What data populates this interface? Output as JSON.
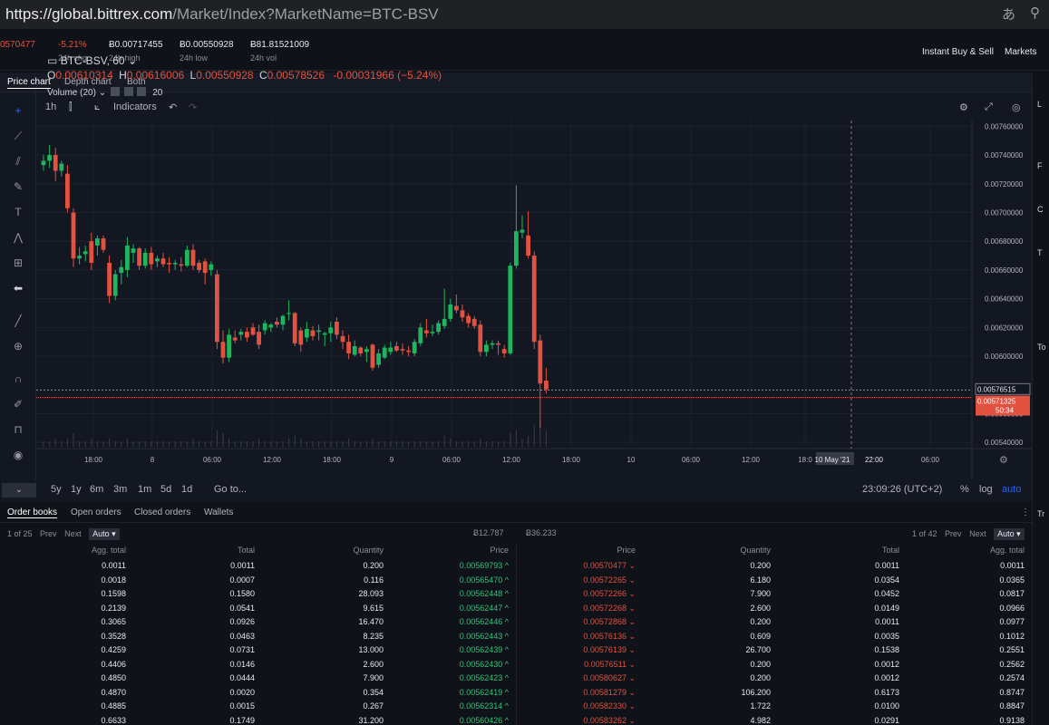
{
  "url": {
    "host": "https://global.bittrex.com",
    "path": "/Market/Index?MarketName=BTC-BSV"
  },
  "ticker": {
    "last": "0570477",
    "chg": "-5.21%",
    "chg_label": "24h chg",
    "high": "Ƀ0.00717455",
    "high_label": "24h high",
    "low": "Ƀ0.00550928",
    "low_label": "24h low",
    "vol": "Ƀ81.81521009",
    "vol_label": "24h vol",
    "instant_buy": "Instant Buy & Sell",
    "markets": "Markets"
  },
  "chart_tabs": [
    "Price chart",
    "Depth chart",
    "Both"
  ],
  "toolbar": {
    "interval": "1h",
    "indicators": "Indicators"
  },
  "legend": {
    "symbol": "BTC-BSV, 60",
    "o_label": "O",
    "o": "0.00610314",
    "h_label": "H",
    "h": "0.00616006",
    "l_label": "L",
    "l": "0.00550928",
    "c_label": "C",
    "c": "0.00578526",
    "change": "-0.00031966 (−5.24%)",
    "volume": "Volume (20)",
    "volume_val": "20"
  },
  "chart_data": {
    "type": "candlestick",
    "symbol": "BTC-BSV",
    "interval": "60",
    "y_ticks": [
      "0.00760000",
      "0.00740000",
      "0.00720000",
      "0.00700000",
      "0.00680000",
      "0.00660000",
      "0.00640000",
      "0.00620000",
      "0.00600000",
      "0.00560000",
      "0.00540000"
    ],
    "ylim": [
      0.00537,
      0.00764
    ],
    "x_ticks": [
      "18:00",
      "8",
      "06:00",
      "12:00",
      "18:00",
      "9",
      "06:00",
      "12:00",
      "18:00",
      "10",
      "06:00",
      "12:00",
      "18:0",
      "10 May '21",
      "22:00",
      "06:00"
    ],
    "price_labels": {
      "bid": "0.00576515",
      "last": "0.00571325",
      "countdown": "50:34"
    },
    "candles": [
      {
        "o": 0.00733,
        "h": 0.0074,
        "l": 0.00729,
        "c": 0.00736
      },
      {
        "o": 0.00736,
        "h": 0.00747,
        "l": 0.00731,
        "c": 0.0074
      },
      {
        "o": 0.0074,
        "h": 0.00745,
        "l": 0.00722,
        "c": 0.00729
      },
      {
        "o": 0.00729,
        "h": 0.00736,
        "l": 0.00725,
        "c": 0.00734
      },
      {
        "o": 0.00727,
        "h": 0.00733,
        "l": 0.007,
        "c": 0.00703
      },
      {
        "o": 0.007,
        "h": 0.00703,
        "l": 0.00662,
        "c": 0.00668
      },
      {
        "o": 0.00668,
        "h": 0.00676,
        "l": 0.00664,
        "c": 0.0067
      },
      {
        "o": 0.00671,
        "h": 0.00677,
        "l": 0.00666,
        "c": 0.00673
      },
      {
        "o": 0.0068,
        "h": 0.00686,
        "l": 0.0066,
        "c": 0.00665
      },
      {
        "o": 0.00677,
        "h": 0.00684,
        "l": 0.0067,
        "c": 0.00682
      },
      {
        "o": 0.00682,
        "h": 0.00684,
        "l": 0.00672,
        "c": 0.00674
      },
      {
        "o": 0.00665,
        "h": 0.0067,
        "l": 0.00637,
        "c": 0.00642
      },
      {
        "o": 0.00642,
        "h": 0.0066,
        "l": 0.00639,
        "c": 0.00657
      },
      {
        "o": 0.00658,
        "h": 0.00667,
        "l": 0.0065,
        "c": 0.00662
      },
      {
        "o": 0.0066,
        "h": 0.00683,
        "l": 0.00655,
        "c": 0.00677
      },
      {
        "o": 0.00672,
        "h": 0.00678,
        "l": 0.00665,
        "c": 0.00675
      },
      {
        "o": 0.00675,
        "h": 0.00676,
        "l": 0.0066,
        "c": 0.00663
      },
      {
        "o": 0.00663,
        "h": 0.00675,
        "l": 0.00661,
        "c": 0.00672
      },
      {
        "o": 0.00672,
        "h": 0.00676,
        "l": 0.0066,
        "c": 0.00664
      },
      {
        "o": 0.00666,
        "h": 0.0067,
        "l": 0.00662,
        "c": 0.00668
      },
      {
        "o": 0.00668,
        "h": 0.00672,
        "l": 0.00662,
        "c": 0.00664
      },
      {
        "o": 0.00665,
        "h": 0.00669,
        "l": 0.00658,
        "c": 0.00664
      },
      {
        "o": 0.00664,
        "h": 0.00667,
        "l": 0.0066,
        "c": 0.00665
      },
      {
        "o": 0.00664,
        "h": 0.00669,
        "l": 0.00659,
        "c": 0.00663
      },
      {
        "o": 0.00663,
        "h": 0.00677,
        "l": 0.00662,
        "c": 0.00674
      },
      {
        "o": 0.00674,
        "h": 0.00678,
        "l": 0.0066,
        "c": 0.00663
      },
      {
        "o": 0.00665,
        "h": 0.00667,
        "l": 0.00658,
        "c": 0.0066
      },
      {
        "o": 0.00666,
        "h": 0.00668,
        "l": 0.0065,
        "c": 0.00658
      },
      {
        "o": 0.0066,
        "h": 0.00666,
        "l": 0.00656,
        "c": 0.00664
      },
      {
        "o": 0.00657,
        "h": 0.0066,
        "l": 0.00605,
        "c": 0.0061
      },
      {
        "o": 0.0061,
        "h": 0.00618,
        "l": 0.00595,
        "c": 0.00599
      },
      {
        "o": 0.00599,
        "h": 0.00619,
        "l": 0.00596,
        "c": 0.00615
      },
      {
        "o": 0.00613,
        "h": 0.00618,
        "l": 0.00609,
        "c": 0.00611
      },
      {
        "o": 0.00615,
        "h": 0.00619,
        "l": 0.00611,
        "c": 0.00617
      },
      {
        "o": 0.00617,
        "h": 0.0062,
        "l": 0.0061,
        "c": 0.00613
      },
      {
        "o": 0.0062,
        "h": 0.00623,
        "l": 0.00614,
        "c": 0.00615
      },
      {
        "o": 0.00617,
        "h": 0.00622,
        "l": 0.00605,
        "c": 0.00608
      },
      {
        "o": 0.00618,
        "h": 0.00625,
        "l": 0.00615,
        "c": 0.00623
      },
      {
        "o": 0.0062,
        "h": 0.00623,
        "l": 0.00617,
        "c": 0.00622
      },
      {
        "o": 0.00624,
        "h": 0.00627,
        "l": 0.0062,
        "c": 0.00622
      },
      {
        "o": 0.00622,
        "h": 0.00629,
        "l": 0.00618,
        "c": 0.00628
      },
      {
        "o": 0.0063,
        "h": 0.00639,
        "l": 0.00625,
        "c": 0.0063
      },
      {
        "o": 0.0063,
        "h": 0.00631,
        "l": 0.00607,
        "c": 0.00609
      },
      {
        "o": 0.00618,
        "h": 0.0062,
        "l": 0.00603,
        "c": 0.00608
      },
      {
        "o": 0.00613,
        "h": 0.00624,
        "l": 0.0061,
        "c": 0.00619
      },
      {
        "o": 0.00618,
        "h": 0.00621,
        "l": 0.00611,
        "c": 0.00614
      },
      {
        "o": 0.00617,
        "h": 0.00622,
        "l": 0.00611,
        "c": 0.00618
      },
      {
        "o": 0.00615,
        "h": 0.00617,
        "l": 0.00607,
        "c": 0.00616
      },
      {
        "o": 0.00616,
        "h": 0.00624,
        "l": 0.0061,
        "c": 0.0062
      },
      {
        "o": 0.00624,
        "h": 0.00627,
        "l": 0.00612,
        "c": 0.00615
      },
      {
        "o": 0.00614,
        "h": 0.00618,
        "l": 0.00605,
        "c": 0.0061
      },
      {
        "o": 0.0061,
        "h": 0.00615,
        "l": 0.00598,
        "c": 0.00602
      },
      {
        "o": 0.00601,
        "h": 0.00611,
        "l": 0.006,
        "c": 0.00607
      },
      {
        "o": 0.00606,
        "h": 0.00607,
        "l": 0.006,
        "c": 0.00602
      },
      {
        "o": 0.00603,
        "h": 0.00607,
        "l": 0.00596,
        "c": 0.00605
      },
      {
        "o": 0.00608,
        "h": 0.00609,
        "l": 0.0059,
        "c": 0.00592
      },
      {
        "o": 0.00594,
        "h": 0.00605,
        "l": 0.00592,
        "c": 0.00602
      },
      {
        "o": 0.00599,
        "h": 0.00608,
        "l": 0.00598,
        "c": 0.00606
      },
      {
        "o": 0.00603,
        "h": 0.0061,
        "l": 0.00601,
        "c": 0.00606
      },
      {
        "o": 0.00607,
        "h": 0.0061,
        "l": 0.00603,
        "c": 0.00604
      },
      {
        "o": 0.00605,
        "h": 0.00609,
        "l": 0.00601,
        "c": 0.00604
      },
      {
        "o": 0.00604,
        "h": 0.00607,
        "l": 0.006,
        "c": 0.00603
      },
      {
        "o": 0.00602,
        "h": 0.00612,
        "l": 0.006,
        "c": 0.0061
      },
      {
        "o": 0.00609,
        "h": 0.00623,
        "l": 0.00607,
        "c": 0.0062
      },
      {
        "o": 0.00618,
        "h": 0.00626,
        "l": 0.00613,
        "c": 0.00616
      },
      {
        "o": 0.00616,
        "h": 0.00622,
        "l": 0.00614,
        "c": 0.00617
      },
      {
        "o": 0.00617,
        "h": 0.00625,
        "l": 0.00615,
        "c": 0.00623
      },
      {
        "o": 0.00621,
        "h": 0.00647,
        "l": 0.00619,
        "c": 0.00626
      },
      {
        "o": 0.00626,
        "h": 0.0064,
        "l": 0.00624,
        "c": 0.00636
      },
      {
        "o": 0.00635,
        "h": 0.00643,
        "l": 0.0063,
        "c": 0.00632
      },
      {
        "o": 0.00632,
        "h": 0.00636,
        "l": 0.00624,
        "c": 0.00627
      },
      {
        "o": 0.00628,
        "h": 0.0063,
        "l": 0.0062,
        "c": 0.00623
      },
      {
        "o": 0.00626,
        "h": 0.00628,
        "l": 0.00619,
        "c": 0.00621
      },
      {
        "o": 0.00622,
        "h": 0.00625,
        "l": 0.006,
        "c": 0.00603
      },
      {
        "o": 0.00603,
        "h": 0.00611,
        "l": 0.006,
        "c": 0.00608
      },
      {
        "o": 0.00608,
        "h": 0.00611,
        "l": 0.00605,
        "c": 0.00609
      },
      {
        "o": 0.00609,
        "h": 0.00611,
        "l": 0.00601,
        "c": 0.00608
      },
      {
        "o": 0.00605,
        "h": 0.00608,
        "l": 0.00599,
        "c": 0.00602
      },
      {
        "o": 0.00602,
        "h": 0.00665,
        "l": 0.00601,
        "c": 0.00663
      },
      {
        "o": 0.00663,
        "h": 0.00719,
        "l": 0.00661,
        "c": 0.00687
      },
      {
        "o": 0.00686,
        "h": 0.00698,
        "l": 0.00682,
        "c": 0.00688
      },
      {
        "o": 0.00684,
        "h": 0.00701,
        "l": 0.00668,
        "c": 0.0067
      },
      {
        "o": 0.0067,
        "h": 0.00673,
        "l": 0.00605,
        "c": 0.0061
      },
      {
        "o": 0.00611,
        "h": 0.00615,
        "l": 0.0055,
        "c": 0.00581
      },
      {
        "o": 0.00583,
        "h": 0.00592,
        "l": 0.00574,
        "c": 0.00577
      }
    ],
    "volumes": [
      2,
      2,
      3,
      2,
      3,
      5,
      2,
      2,
      3,
      2,
      2,
      3,
      2,
      2,
      3,
      2,
      2,
      2,
      2,
      2,
      2,
      2,
      2,
      2,
      2,
      3,
      2,
      2,
      2,
      6,
      5,
      3,
      2,
      2,
      2,
      2,
      3,
      2,
      2,
      2,
      2,
      3,
      4,
      3,
      2,
      2,
      2,
      2,
      2,
      2,
      2,
      3,
      2,
      2,
      2,
      3,
      2,
      2,
      2,
      2,
      2,
      2,
      2,
      2,
      2,
      2,
      2,
      4,
      3,
      2,
      2,
      2,
      2,
      3,
      2,
      2,
      2,
      2,
      5,
      6,
      3,
      4,
      8,
      10,
      6
    ]
  },
  "bottom_bar": {
    "ranges": [
      "5y",
      "1y",
      "6m",
      "3m",
      "1m",
      "5d",
      "1d"
    ],
    "goto": "Go to...",
    "time": "23:09:26 (UTC+2)",
    "pct": "%",
    "log": "log",
    "auto": "auto"
  },
  "orderbook": {
    "tabs": [
      "Order books",
      "Open orders",
      "Closed orders",
      "Wallets"
    ],
    "bids_pager": {
      "page": "1 of 25",
      "prev": "Prev",
      "next": "Next",
      "mode": "Auto"
    },
    "asks_pager": {
      "page": "1 of 42",
      "prev": "Prev",
      "next": "Next",
      "mode": "Auto"
    },
    "bid_total": "Ƀ12.787",
    "ask_total": "Ƀ36.233",
    "bid_headers": [
      "Agg. total",
      "Total",
      "Quantity",
      "Price"
    ],
    "ask_headers": [
      "Price",
      "Quantity",
      "Total",
      "Agg. total"
    ],
    "bids": [
      [
        "0.0011",
        "0.0011",
        "0.200",
        "0.00569793"
      ],
      [
        "0.0018",
        "0.0007",
        "0.116",
        "0.00565470"
      ],
      [
        "0.1598",
        "0.1580",
        "28.093",
        "0.00562448"
      ],
      [
        "0.2139",
        "0.0541",
        "9.615",
        "0.00562447"
      ],
      [
        "0.3065",
        "0.0926",
        "16.470",
        "0.00562446"
      ],
      [
        "0.3528",
        "0.0463",
        "8.235",
        "0.00562443"
      ],
      [
        "0.4259",
        "0.0731",
        "13.000",
        "0.00562439"
      ],
      [
        "0.4406",
        "0.0146",
        "2.600",
        "0.00562430"
      ],
      [
        "0.4850",
        "0.0444",
        "7.900",
        "0.00562423"
      ],
      [
        "0.4870",
        "0.0020",
        "0.354",
        "0.00562419"
      ],
      [
        "0.4885",
        "0.0015",
        "0.267",
        "0.00562314"
      ],
      [
        "0.6633",
        "0.1749",
        "31.200",
        "0.00560426"
      ]
    ],
    "asks": [
      [
        "0.00570477",
        "0.200",
        "0.0011",
        "0.0011"
      ],
      [
        "0.00572265",
        "6.180",
        "0.0354",
        "0.0365"
      ],
      [
        "0.00572266",
        "7.900",
        "0.0452",
        "0.0817"
      ],
      [
        "0.00572268",
        "2.600",
        "0.0149",
        "0.0966"
      ],
      [
        "0.00572868",
        "0.200",
        "0.0011",
        "0.0977"
      ],
      [
        "0.00576136",
        "0.609",
        "0.0035",
        "0.1012"
      ],
      [
        "0.00576139",
        "26.700",
        "0.1538",
        "0.2551"
      ],
      [
        "0.00576511",
        "0.200",
        "0.0012",
        "0.2562"
      ],
      [
        "0.00580627",
        "0.200",
        "0.0012",
        "0.2574"
      ],
      [
        "0.00581279",
        "106.200",
        "0.6173",
        "0.8747"
      ],
      [
        "0.00582330",
        "1.722",
        "0.0100",
        "0.8847"
      ],
      [
        "0.00583262",
        "4.982",
        "0.0291",
        "0.9138"
      ]
    ]
  },
  "right_strip": [
    "L",
    "F",
    "C",
    "T",
    "To",
    "Tr"
  ]
}
